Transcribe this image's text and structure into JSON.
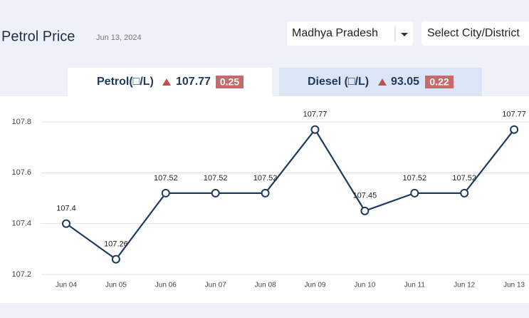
{
  "header": {
    "title": "Petrol Price",
    "date": "Jun 13, 2024"
  },
  "filters": {
    "state": "Madhya Pradesh",
    "city": "Select City/District"
  },
  "tabs": [
    {
      "label": "Petrol(□/L)",
      "price": 107.77,
      "change": 0.25
    },
    {
      "label": "Diesel (□/L)",
      "price": 93.05,
      "change": 0.22
    }
  ],
  "chart_data": {
    "type": "line",
    "categories": [
      "Jun 04",
      "Jun 05",
      "Jun 06",
      "Jun 07",
      "Jun 08",
      "Jun 09",
      "Jun 10",
      "Jun 11",
      "Jun 12",
      "Jun 13"
    ],
    "values": [
      107.4,
      107.26,
      107.52,
      107.52,
      107.52,
      107.77,
      107.45,
      107.52,
      107.52,
      107.77
    ],
    "color": "#1f3a5f",
    "ylim": [
      107.2,
      107.8
    ],
    "yticks": [
      107.2,
      107.4,
      107.6,
      107.8
    ],
    "grid": true
  }
}
